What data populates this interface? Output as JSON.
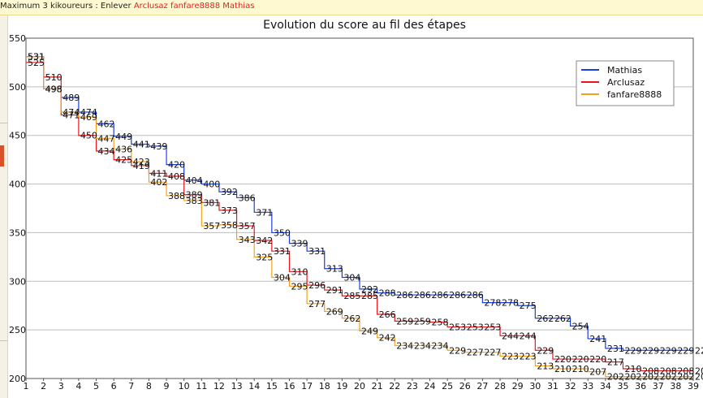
{
  "notice": {
    "prefix": "Maximum 3 kikoureurs : Enlever",
    "links": [
      "Arclusaz",
      "fanfare8888",
      "Mathias"
    ]
  },
  "chart_data": {
    "type": "line",
    "title": "Evolution du score au fil des étapes",
    "xlabel": "",
    "ylabel": "",
    "x": [
      1,
      2,
      3,
      4,
      5,
      6,
      7,
      8,
      9,
      10,
      11,
      12,
      13,
      14,
      15,
      16,
      17,
      18,
      19,
      20,
      21,
      22,
      23,
      24,
      25,
      26,
      27,
      28,
      29,
      30,
      31,
      32,
      33,
      34,
      35,
      36,
      37,
      38,
      39
    ],
    "xlim": [
      1,
      39
    ],
    "ylim": [
      200,
      550
    ],
    "yticks": [
      200,
      250,
      300,
      350,
      400,
      450,
      500,
      550
    ],
    "grid": true,
    "legend_position": "top-right",
    "series": [
      {
        "name": "Mathias",
        "color": "#1a3fe0",
        "values": [
          531,
          498,
          489,
          474,
          462,
          449,
          441,
          439,
          420,
          404,
          400,
          392,
          386,
          371,
          350,
          339,
          331,
          313,
          304,
          292,
          288,
          286,
          286,
          286,
          286,
          286,
          278,
          278,
          275,
          262,
          262,
          254,
          241,
          231,
          229,
          229,
          229,
          229,
          229
        ]
      },
      {
        "name": "Arclusaz",
        "color": "#e8151b",
        "values": [
          525,
          510,
          471,
          450,
          434,
          425,
          419,
          411,
          408,
          389,
          381,
          373,
          357,
          342,
          331,
          310,
          296,
          291,
          285,
          285,
          266,
          259,
          259,
          258,
          253,
          253,
          253,
          244,
          244,
          229,
          220,
          220,
          220,
          217,
          210,
          208,
          208,
          208,
          208
        ]
      },
      {
        "name": "fanfare8888",
        "color": "#f5a017",
        "values": [
          531,
          498,
          474,
          469,
          447,
          436,
          423,
          402,
          388,
          383,
          357,
          358,
          343,
          325,
          304,
          295,
          277,
          269,
          262,
          249,
          242,
          234,
          234,
          234,
          229,
          227,
          227,
          223,
          223,
          213,
          210,
          210,
          207,
          202,
          202,
          202,
          202,
          202,
          202
        ]
      }
    ]
  }
}
